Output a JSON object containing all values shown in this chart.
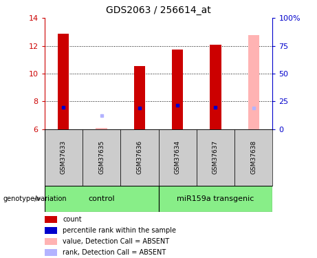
{
  "title": "GDS2063 / 256614_at",
  "samples": [
    "GSM37633",
    "GSM37635",
    "GSM37636",
    "GSM37634",
    "GSM37637",
    "GSM37638"
  ],
  "ylim": [
    6,
    14
  ],
  "y2lim": [
    0,
    100
  ],
  "yticks": [
    6,
    8,
    10,
    12,
    14
  ],
  "y2ticks": [
    0,
    25,
    50,
    75,
    100
  ],
  "y2ticklabels": [
    "0",
    "25",
    "50",
    "75",
    "100%"
  ],
  "bar_width": 0.3,
  "bar_bottom": 6,
  "red_bars": {
    "GSM37633": 12.85,
    "GSM37635": null,
    "GSM37636": 10.55,
    "GSM37634": 11.75,
    "GSM37637": 12.1,
    "GSM37638": null
  },
  "pink_bars": {
    "GSM37633": null,
    "GSM37635": 6.05,
    "GSM37636": null,
    "GSM37634": null,
    "GSM37637": null,
    "GSM37638": 12.75
  },
  "blue_markers": {
    "GSM37633": 7.55,
    "GSM37635": null,
    "GSM37636": 7.5,
    "GSM37634": 7.7,
    "GSM37637": 7.55,
    "GSM37638": null
  },
  "lavender_markers": {
    "GSM37633": null,
    "GSM37635": 6.95,
    "GSM37636": null,
    "GSM37634": null,
    "GSM37637": null,
    "GSM37638": 7.5
  },
  "group_label_control": "control",
  "group_label_transgenic": "miR159a transgenic",
  "genotype_label": "genotype/variation",
  "legend_items": [
    {
      "label": "count",
      "color": "#cc0000"
    },
    {
      "label": "percentile rank within the sample",
      "color": "#0000cc"
    },
    {
      "label": "value, Detection Call = ABSENT",
      "color": "#ffb3b3"
    },
    {
      "label": "rank, Detection Call = ABSENT",
      "color": "#b3b3ff"
    }
  ],
  "left_yaxis_color": "#cc0000",
  "right_yaxis_color": "#0000cc",
  "bg_plot": "#ffffff",
  "bg_samples": "#cccccc",
  "bg_control": "#88ee88",
  "bg_transgenic": "#88ee88"
}
